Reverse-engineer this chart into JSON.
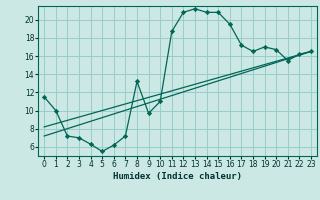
{
  "xlabel": "Humidex (Indice chaleur)",
  "bg_color": "#cce8e4",
  "grid_color": "#99cccc",
  "line_color": "#006655",
  "xlim": [
    -0.5,
    23.5
  ],
  "ylim": [
    5.0,
    21.5
  ],
  "xticks": [
    0,
    1,
    2,
    3,
    4,
    5,
    6,
    7,
    8,
    9,
    10,
    11,
    12,
    13,
    14,
    15,
    16,
    17,
    18,
    19,
    20,
    21,
    22,
    23
  ],
  "yticks": [
    6,
    8,
    10,
    12,
    14,
    16,
    18,
    20
  ],
  "line1_x": [
    0,
    1,
    2,
    3,
    4,
    5,
    6,
    7,
    8,
    9,
    10,
    11,
    12,
    13,
    14,
    15,
    16,
    17,
    18,
    19,
    20,
    21,
    22,
    23
  ],
  "line1_y": [
    11.5,
    10.0,
    7.2,
    7.0,
    6.3,
    5.5,
    6.2,
    7.2,
    13.2,
    9.7,
    11.0,
    18.7,
    20.8,
    21.2,
    20.8,
    20.8,
    19.5,
    17.2,
    16.5,
    17.0,
    16.7,
    15.5,
    16.2,
    16.5
  ],
  "line2_x": [
    0,
    23
  ],
  "line2_y": [
    8.2,
    16.5
  ],
  "line3_x": [
    0,
    23
  ],
  "line3_y": [
    7.2,
    16.5
  ],
  "tick_fontsize": 5.5,
  "xlabel_fontsize": 6.5
}
